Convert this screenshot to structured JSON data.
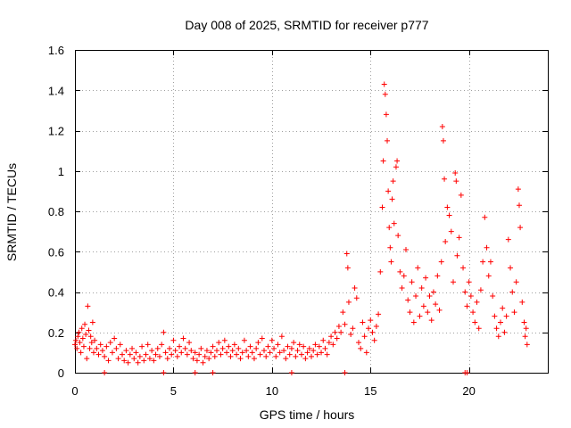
{
  "chart_data": {
    "type": "scatter",
    "title": "Day 008 of 2025, SRMTID for receiver p777",
    "xlabel": "GPS time / hours",
    "ylabel": "SRMTID / TECUs",
    "xlim": [
      0,
      24
    ],
    "ylim": [
      0,
      1.6
    ],
    "xticks": [
      0,
      5,
      10,
      15,
      20
    ],
    "xtick_labels": [
      "0",
      "5",
      "10",
      "15",
      "20"
    ],
    "yticks": [
      0,
      0.2,
      0.4,
      0.6,
      0.8,
      1.0,
      1.2,
      1.4,
      1.6
    ],
    "ytick_labels": [
      "0",
      "0.2",
      "0.4",
      "0.6",
      "0.8",
      "1",
      "1.2",
      "1.4",
      "1.6"
    ],
    "grid": true,
    "marker": "plus",
    "color": "#ff0000",
    "series": [
      {
        "name": "SRMTID",
        "points": [
          [
            0.0,
            0.14
          ],
          [
            0.05,
            0.16
          ],
          [
            0.1,
            0.12
          ],
          [
            0.15,
            0.18
          ],
          [
            0.2,
            0.2
          ],
          [
            0.25,
            0.15
          ],
          [
            0.3,
            0.1
          ],
          [
            0.35,
            0.22
          ],
          [
            0.4,
            0.17
          ],
          [
            0.45,
            0.13
          ],
          [
            0.5,
            0.24
          ],
          [
            0.55,
            0.19
          ],
          [
            0.6,
            0.07
          ],
          [
            0.65,
            0.33
          ],
          [
            0.7,
            0.21
          ],
          [
            0.75,
            0.12
          ],
          [
            0.8,
            0.18
          ],
          [
            0.85,
            0.15
          ],
          [
            0.9,
            0.25
          ],
          [
            0.95,
            0.1
          ],
          [
            1.0,
            0.16
          ],
          [
            1.1,
            0.12
          ],
          [
            1.2,
            0.09
          ],
          [
            1.3,
            0.14
          ],
          [
            1.4,
            0.11
          ],
          [
            1.5,
            0.08
          ],
          [
            1.6,
            0.13
          ],
          [
            1.7,
            0.06
          ],
          [
            1.8,
            0.15
          ],
          [
            1.9,
            0.1
          ],
          [
            2.0,
            0.17
          ],
          [
            2.1,
            0.12
          ],
          [
            2.2,
            0.07
          ],
          [
            2.3,
            0.14
          ],
          [
            2.4,
            0.09
          ],
          [
            2.5,
            0.06
          ],
          [
            2.6,
            0.11
          ],
          [
            2.7,
            0.05
          ],
          [
            2.8,
            0.09
          ],
          [
            2.9,
            0.12
          ],
          [
            3.0,
            0.07
          ],
          [
            3.1,
            0.1
          ],
          [
            3.2,
            0.05
          ],
          [
            3.3,
            0.08
          ],
          [
            3.4,
            0.13
          ],
          [
            3.5,
            0.06
          ],
          [
            3.6,
            0.09
          ],
          [
            3.7,
            0.14
          ],
          [
            3.8,
            0.07
          ],
          [
            3.9,
            0.11
          ],
          [
            4.0,
            0.06
          ],
          [
            4.1,
            0.09
          ],
          [
            4.2,
            0.12
          ],
          [
            4.3,
            0.08
          ],
          [
            4.4,
            0.14
          ],
          [
            4.5,
            0.2
          ],
          [
            4.6,
            0.1
          ],
          [
            4.7,
            0.07
          ],
          [
            4.8,
            0.12
          ],
          [
            4.9,
            0.09
          ],
          [
            5.0,
            0.16
          ],
          [
            5.1,
            0.11
          ],
          [
            5.2,
            0.08
          ],
          [
            5.3,
            0.13
          ],
          [
            5.4,
            0.1
          ],
          [
            5.5,
            0.17
          ],
          [
            5.6,
            0.12
          ],
          [
            5.7,
            0.09
          ],
          [
            5.8,
            0.15
          ],
          [
            5.9,
            0.11
          ],
          [
            6.0,
            0.07
          ],
          [
            6.1,
            0.1
          ],
          [
            6.2,
            0.06
          ],
          [
            6.3,
            0.09
          ],
          [
            6.4,
            0.12
          ],
          [
            6.5,
            0.05
          ],
          [
            6.6,
            0.08
          ],
          [
            6.7,
            0.11
          ],
          [
            6.8,
            0.07
          ],
          [
            6.9,
            0.1
          ],
          [
            7.0,
            0.13
          ],
          [
            7.1,
            0.08
          ],
          [
            7.2,
            0.11
          ],
          [
            7.3,
            0.15
          ],
          [
            7.4,
            0.09
          ],
          [
            7.5,
            0.12
          ],
          [
            7.6,
            0.16
          ],
          [
            7.7,
            0.1
          ],
          [
            7.8,
            0.13
          ],
          [
            7.9,
            0.08
          ],
          [
            8.0,
            0.11
          ],
          [
            8.1,
            0.14
          ],
          [
            8.2,
            0.09
          ],
          [
            8.3,
            0.12
          ],
          [
            8.4,
            0.07
          ],
          [
            8.5,
            0.1
          ],
          [
            8.6,
            0.16
          ],
          [
            8.7,
            0.11
          ],
          [
            8.8,
            0.08
          ],
          [
            8.9,
            0.13
          ],
          [
            9.0,
            0.1
          ],
          [
            9.1,
            0.07
          ],
          [
            9.2,
            0.12
          ],
          [
            9.3,
            0.15
          ],
          [
            9.4,
            0.09
          ],
          [
            9.5,
            0.17
          ],
          [
            9.6,
            0.11
          ],
          [
            9.7,
            0.08
          ],
          [
            9.8,
            0.13
          ],
          [
            9.9,
            0.1
          ],
          [
            10.0,
            0.16
          ],
          [
            10.1,
            0.12
          ],
          [
            10.2,
            0.08
          ],
          [
            10.3,
            0.14
          ],
          [
            10.4,
            0.1
          ],
          [
            10.5,
            0.18
          ],
          [
            10.6,
            0.11
          ],
          [
            10.7,
            0.07
          ],
          [
            10.8,
            0.13
          ],
          [
            10.9,
            0.09
          ],
          [
            11.0,
            0.12
          ],
          [
            11.1,
            0.15
          ],
          [
            11.2,
            0.08
          ],
          [
            11.3,
            0.11
          ],
          [
            11.4,
            0.14
          ],
          [
            11.5,
            0.09
          ],
          [
            11.6,
            0.13
          ],
          [
            11.7,
            0.07
          ],
          [
            11.8,
            0.1
          ],
          [
            11.9,
            0.12
          ],
          [
            12.0,
            0.08
          ],
          [
            12.1,
            0.11
          ],
          [
            12.2,
            0.14
          ],
          [
            12.3,
            0.09
          ],
          [
            12.4,
            0.13
          ],
          [
            12.5,
            0.1
          ],
          [
            12.6,
            0.16
          ],
          [
            12.7,
            0.12
          ],
          [
            12.8,
            0.09
          ],
          [
            12.9,
            0.15
          ],
          [
            13.0,
            0.18
          ],
          [
            13.1,
            0.14
          ],
          [
            13.2,
            0.2
          ],
          [
            13.3,
            0.17
          ],
          [
            13.4,
            0.23
          ],
          [
            13.5,
            0.2
          ],
          [
            13.6,
            0.3
          ],
          [
            13.7,
            0.24
          ],
          [
            13.8,
            0.59
          ],
          [
            13.85,
            0.52
          ],
          [
            13.9,
            0.35
          ],
          [
            14.0,
            0.19
          ],
          [
            14.1,
            0.22
          ],
          [
            14.2,
            0.42
          ],
          [
            14.3,
            0.37
          ],
          [
            14.4,
            0.15
          ],
          [
            14.5,
            0.12
          ],
          [
            14.6,
            0.25
          ],
          [
            14.7,
            0.18
          ],
          [
            14.8,
            0.1
          ],
          [
            14.9,
            0.22
          ],
          [
            15.0,
            0.26
          ],
          [
            15.1,
            0.2
          ],
          [
            15.2,
            0.16
          ],
          [
            15.3,
            0.23
          ],
          [
            15.4,
            0.29
          ],
          [
            15.5,
            0.5
          ],
          [
            15.6,
            0.82
          ],
          [
            15.65,
            1.05
          ],
          [
            15.7,
            1.43
          ],
          [
            15.75,
            1.38
          ],
          [
            15.8,
            1.28
          ],
          [
            15.85,
            1.15
          ],
          [
            15.9,
            0.9
          ],
          [
            15.95,
            0.72
          ],
          [
            16.0,
            0.62
          ],
          [
            16.05,
            0.55
          ],
          [
            16.1,
            0.86
          ],
          [
            16.15,
            0.95
          ],
          [
            16.2,
            0.74
          ],
          [
            16.3,
            1.02
          ],
          [
            16.35,
            1.05
          ],
          [
            16.4,
            0.68
          ],
          [
            16.5,
            0.5
          ],
          [
            16.6,
            0.42
          ],
          [
            16.7,
            0.48
          ],
          [
            16.8,
            0.61
          ],
          [
            16.9,
            0.36
          ],
          [
            17.0,
            0.3
          ],
          [
            17.1,
            0.45
          ],
          [
            17.2,
            0.25
          ],
          [
            17.3,
            0.38
          ],
          [
            17.4,
            0.52
          ],
          [
            17.5,
            0.28
          ],
          [
            17.6,
            0.42
          ],
          [
            17.7,
            0.33
          ],
          [
            17.8,
            0.47
          ],
          [
            17.9,
            0.3
          ],
          [
            18.0,
            0.38
          ],
          [
            18.1,
            0.26
          ],
          [
            18.2,
            0.4
          ],
          [
            18.3,
            0.34
          ],
          [
            18.4,
            0.48
          ],
          [
            18.5,
            0.31
          ],
          [
            18.6,
            0.55
          ],
          [
            18.65,
            1.22
          ],
          [
            18.7,
            1.15
          ],
          [
            18.75,
            0.96
          ],
          [
            18.8,
            0.65
          ],
          [
            18.9,
            0.82
          ],
          [
            19.0,
            0.78
          ],
          [
            19.1,
            0.7
          ],
          [
            19.2,
            0.45
          ],
          [
            19.3,
            0.99
          ],
          [
            19.35,
            0.95
          ],
          [
            19.4,
            0.58
          ],
          [
            19.5,
            0.67
          ],
          [
            19.6,
            0.88
          ],
          [
            19.7,
            0.52
          ],
          [
            19.8,
            0.4
          ],
          [
            19.9,
            0.33
          ],
          [
            20.0,
            0.45
          ],
          [
            20.1,
            0.38
          ],
          [
            20.2,
            0.3
          ],
          [
            20.3,
            0.25
          ],
          [
            20.4,
            0.35
          ],
          [
            20.5,
            0.22
          ],
          [
            20.6,
            0.41
          ],
          [
            20.7,
            0.55
          ],
          [
            20.8,
            0.77
          ],
          [
            20.9,
            0.62
          ],
          [
            21.0,
            0.48
          ],
          [
            21.1,
            0.55
          ],
          [
            21.2,
            0.38
          ],
          [
            21.3,
            0.28
          ],
          [
            21.4,
            0.22
          ],
          [
            21.5,
            0.18
          ],
          [
            21.6,
            0.25
          ],
          [
            21.7,
            0.32
          ],
          [
            21.8,
            0.2
          ],
          [
            21.9,
            0.28
          ],
          [
            22.0,
            0.66
          ],
          [
            22.1,
            0.52
          ],
          [
            22.2,
            0.4
          ],
          [
            22.3,
            0.3
          ],
          [
            22.4,
            0.45
          ],
          [
            22.5,
            0.91
          ],
          [
            22.55,
            0.83
          ],
          [
            22.6,
            0.72
          ],
          [
            22.7,
            0.35
          ],
          [
            22.8,
            0.25
          ],
          [
            22.85,
            0.18
          ],
          [
            22.9,
            0.22
          ],
          [
            22.95,
            0.14
          ],
          [
            1.5,
            0.0
          ],
          [
            4.5,
            0.0
          ],
          [
            6.1,
            0.0
          ],
          [
            7.0,
            0.0
          ],
          [
            11.0,
            0.0
          ],
          [
            13.7,
            0.0
          ],
          [
            19.8,
            0.0
          ],
          [
            19.9,
            0.0
          ]
        ]
      }
    ]
  }
}
